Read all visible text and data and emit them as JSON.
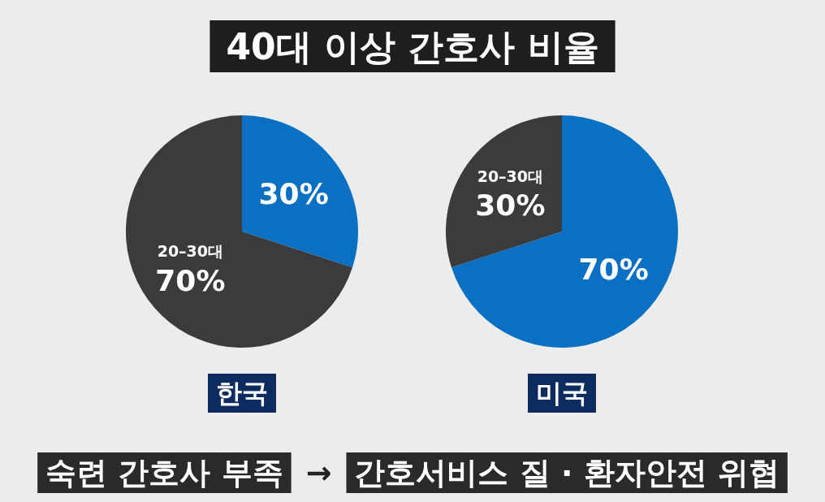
{
  "chart_data": [
    {
      "type": "other",
      "title": "40대 이상 간호사 비율",
      "annotations": [
        "숙련 간호사 부족",
        "→",
        "간호서비스 질 · 환자안전 위협"
      ]
    },
    {
      "type": "pie",
      "xlabel": "한국",
      "categories": [
        null,
        "20–30대"
      ],
      "values": [
        30,
        70
      ],
      "colors": [
        "#0a70c4",
        "#3b3b3d"
      ],
      "value_labels": [
        "30%",
        "70%"
      ]
    },
    {
      "type": "pie",
      "xlabel": "미국",
      "categories": [
        null,
        "20–30대"
      ],
      "values": [
        70,
        30
      ],
      "colors": [
        "#0a70c4",
        "#3b3b3d"
      ],
      "value_labels": [
        "70%",
        "30%"
      ]
    }
  ]
}
